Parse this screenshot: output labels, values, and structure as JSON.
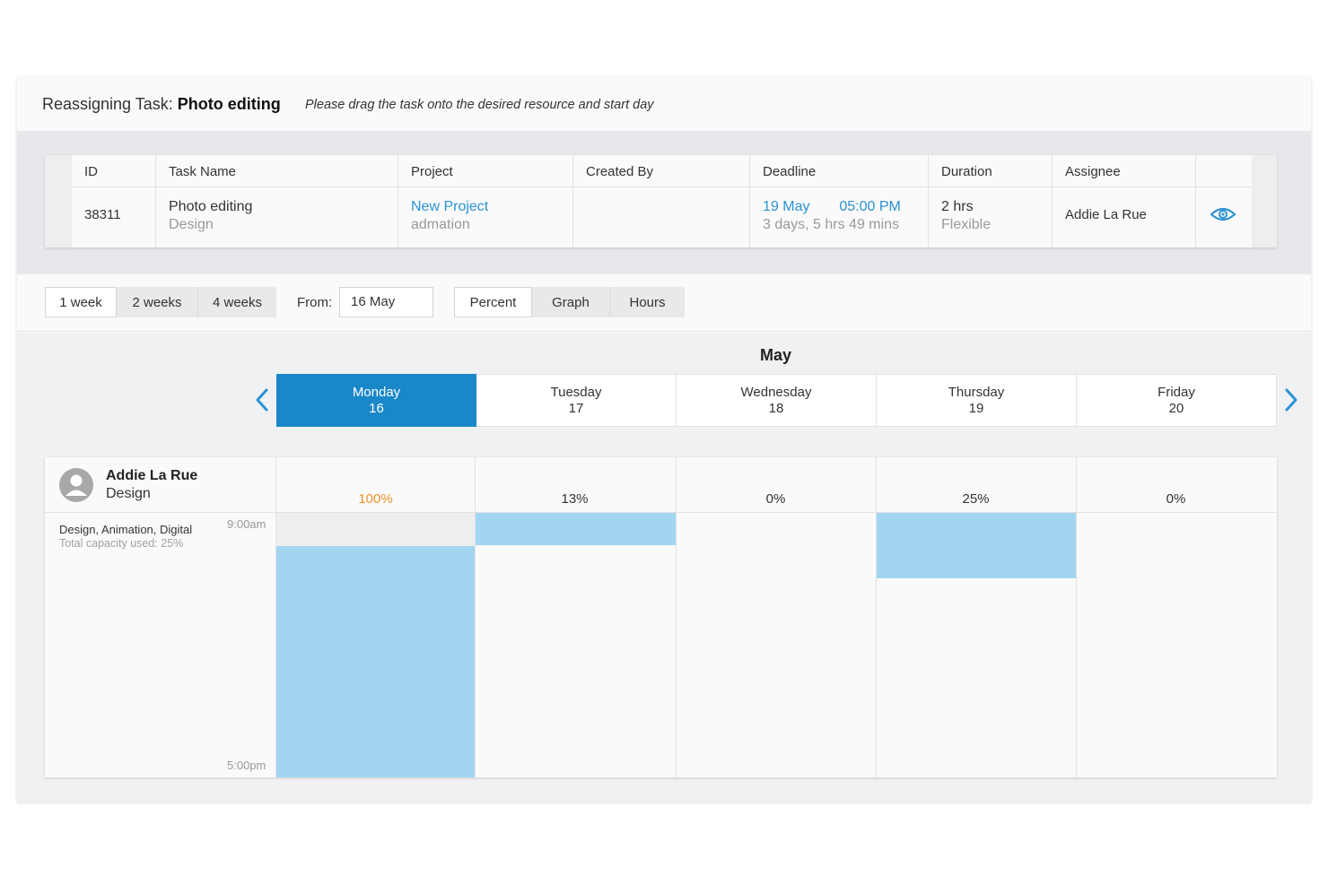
{
  "header": {
    "title_prefix": "Reassigning Task:",
    "task_name": "Photo editing",
    "hint": "Please drag the task onto the desired resource and start day"
  },
  "task_table": {
    "columns": [
      "ID",
      "Task Name",
      "Project",
      "Created By",
      "Deadline",
      "Duration",
      "Assignee"
    ],
    "row": {
      "id": "38311",
      "task_name": "Photo editing",
      "task_type": "Design",
      "project": "New Project",
      "project_client": "admation",
      "created_by": "",
      "deadline_date": "19 May",
      "deadline_time": "05:00 PM",
      "deadline_remaining": "3 days, 5 hrs 49 mins",
      "duration": "2 hrs",
      "duration_type": "Flexible",
      "assignee": "Addie La Rue"
    },
    "view_icon": "eye-icon"
  },
  "controls": {
    "range_options": [
      "1 week",
      "2 weeks",
      "4 weeks"
    ],
    "range_selected": "1 week",
    "from_label": "From:",
    "from_value": "16 May",
    "view_options": [
      "Percent",
      "Graph",
      "Hours"
    ],
    "view_selected": "Percent"
  },
  "calendar": {
    "month": "May",
    "prev_icon": "chevron-left-icon",
    "next_icon": "chevron-right-icon",
    "days": [
      {
        "name": "Monday",
        "date": "16"
      },
      {
        "name": "Tuesday",
        "date": "17"
      },
      {
        "name": "Wednesday",
        "date": "18"
      },
      {
        "name": "Thursday",
        "date": "19"
      },
      {
        "name": "Friday",
        "date": "20"
      }
    ],
    "selected_day_index": 0
  },
  "resource": {
    "name": "Addie La Rue",
    "role": "Design",
    "skills": "Design, Animation, Digital",
    "capacity": "Total capacity used: 25%",
    "start_time": "9:00am",
    "end_time": "5:00pm",
    "day_percent": [
      "100%",
      "13%",
      "0%",
      "25%",
      "0%"
    ],
    "colors": {
      "booked": "#a3d5f1",
      "unavailable": "#eeeeee",
      "over": "#f0932b",
      "selected": "#1a87c9"
    }
  }
}
